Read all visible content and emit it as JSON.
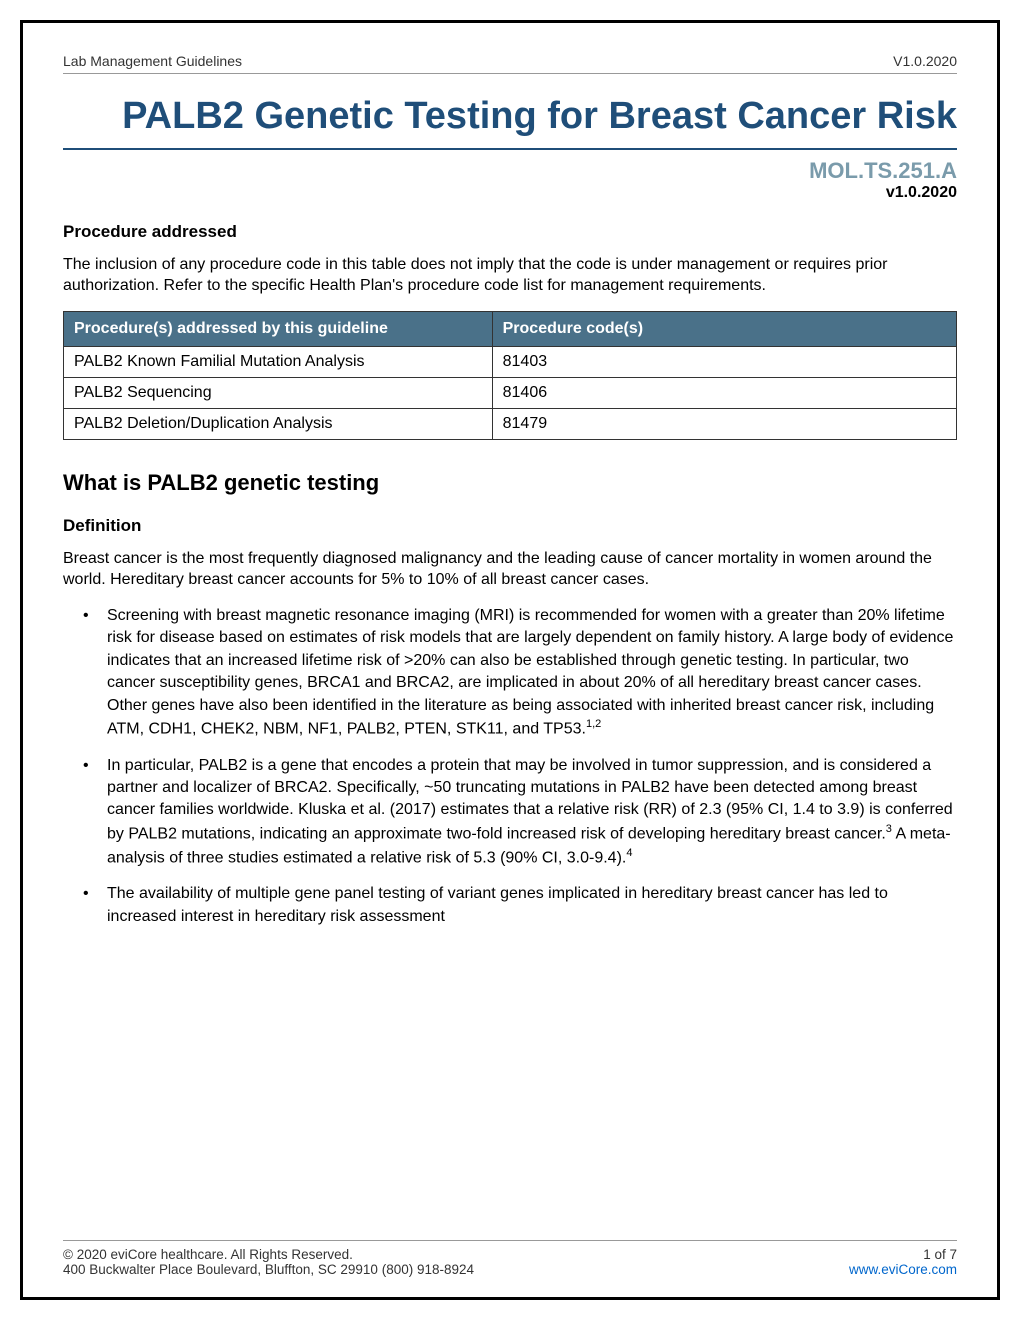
{
  "header": {
    "left": "Lab Management Guidelines",
    "right": "V1.0.2020"
  },
  "title": "PALB2 Genetic Testing for Breast Cancer Risk",
  "doc_code": "MOL.TS.251.A",
  "doc_version": "v1.0.2020",
  "procedure_section": {
    "heading": "Procedure addressed",
    "intro": "The inclusion of any procedure code in this table does not imply that the code is under management or requires prior authorization. Refer to the specific Health Plan's procedure code list for management requirements.",
    "header_col1": "Procedure(s) addressed by this guideline",
    "header_col2": "Procedure code(s)",
    "rows": [
      {
        "procedure": "PALB2 Known Familial Mutation Analysis",
        "code": "81403"
      },
      {
        "procedure": "PALB2 Sequencing",
        "code": "81406"
      },
      {
        "procedure": "PALB2 Deletion/Duplication Analysis",
        "code": "81479"
      }
    ]
  },
  "what_is": {
    "heading": "What is PALB2 genetic testing",
    "subheading": "Definition",
    "intro": "Breast cancer is the most frequently diagnosed malignancy and the leading cause of cancer mortality in women around the world. Hereditary breast cancer accounts for 5% to 10% of all breast cancer cases.",
    "bullets": [
      {
        "text": "Screening with breast magnetic resonance imaging (MRI) is recommended for women with a greater than 20% lifetime risk for disease based on estimates of risk models that are largely dependent on family history. A large body of evidence indicates that an increased lifetime risk of >20% can also be established through genetic testing. In particular, two cancer susceptibility genes, BRCA1 and BRCA2, are implicated in about 20% of all hereditary breast cancer cases. Other genes have also been identified in the literature as being associated with inherited breast cancer risk, including ATM, CDH1, CHEK2, NBM, NF1, PALB2, PTEN, STK11, and TP53.",
        "sup": "1,2"
      },
      {
        "text": "In particular, PALB2 is a gene that encodes a protein that may be involved in tumor suppression, and is considered a partner and localizer of BRCA2. Specifically, ~50 truncating mutations in PALB2 have been detected among breast cancer families worldwide. Kluska et al. (2017) estimates that a relative risk (RR) of 2.3 (95% CI, 1.4 to 3.9) is conferred by PALB2 mutations, indicating an approximate two-fold increased risk of developing hereditary breast cancer.",
        "sup": "3",
        "text2": " A meta-analysis of three studies estimated a relative risk of 5.3 (90% CI, 3.0-9.4).",
        "sup2": "4"
      },
      {
        "text": "The availability of multiple gene panel testing of variant genes implicated in hereditary breast cancer has led to increased interest in hereditary risk assessment"
      }
    ]
  },
  "footer": {
    "copyright": "© 2020 eviCore healthcare. All Rights Reserved.",
    "page": "1 of 7",
    "address": "400 Buckwalter Place Boulevard, Bluffton, SC 29910 (800) 918-8924",
    "link": "www.eviCore.com"
  },
  "colors": {
    "title_color": "#1f4e79",
    "code_color": "#7a9bab",
    "table_header_bg": "#4a7189",
    "link_color": "#0066cc"
  }
}
